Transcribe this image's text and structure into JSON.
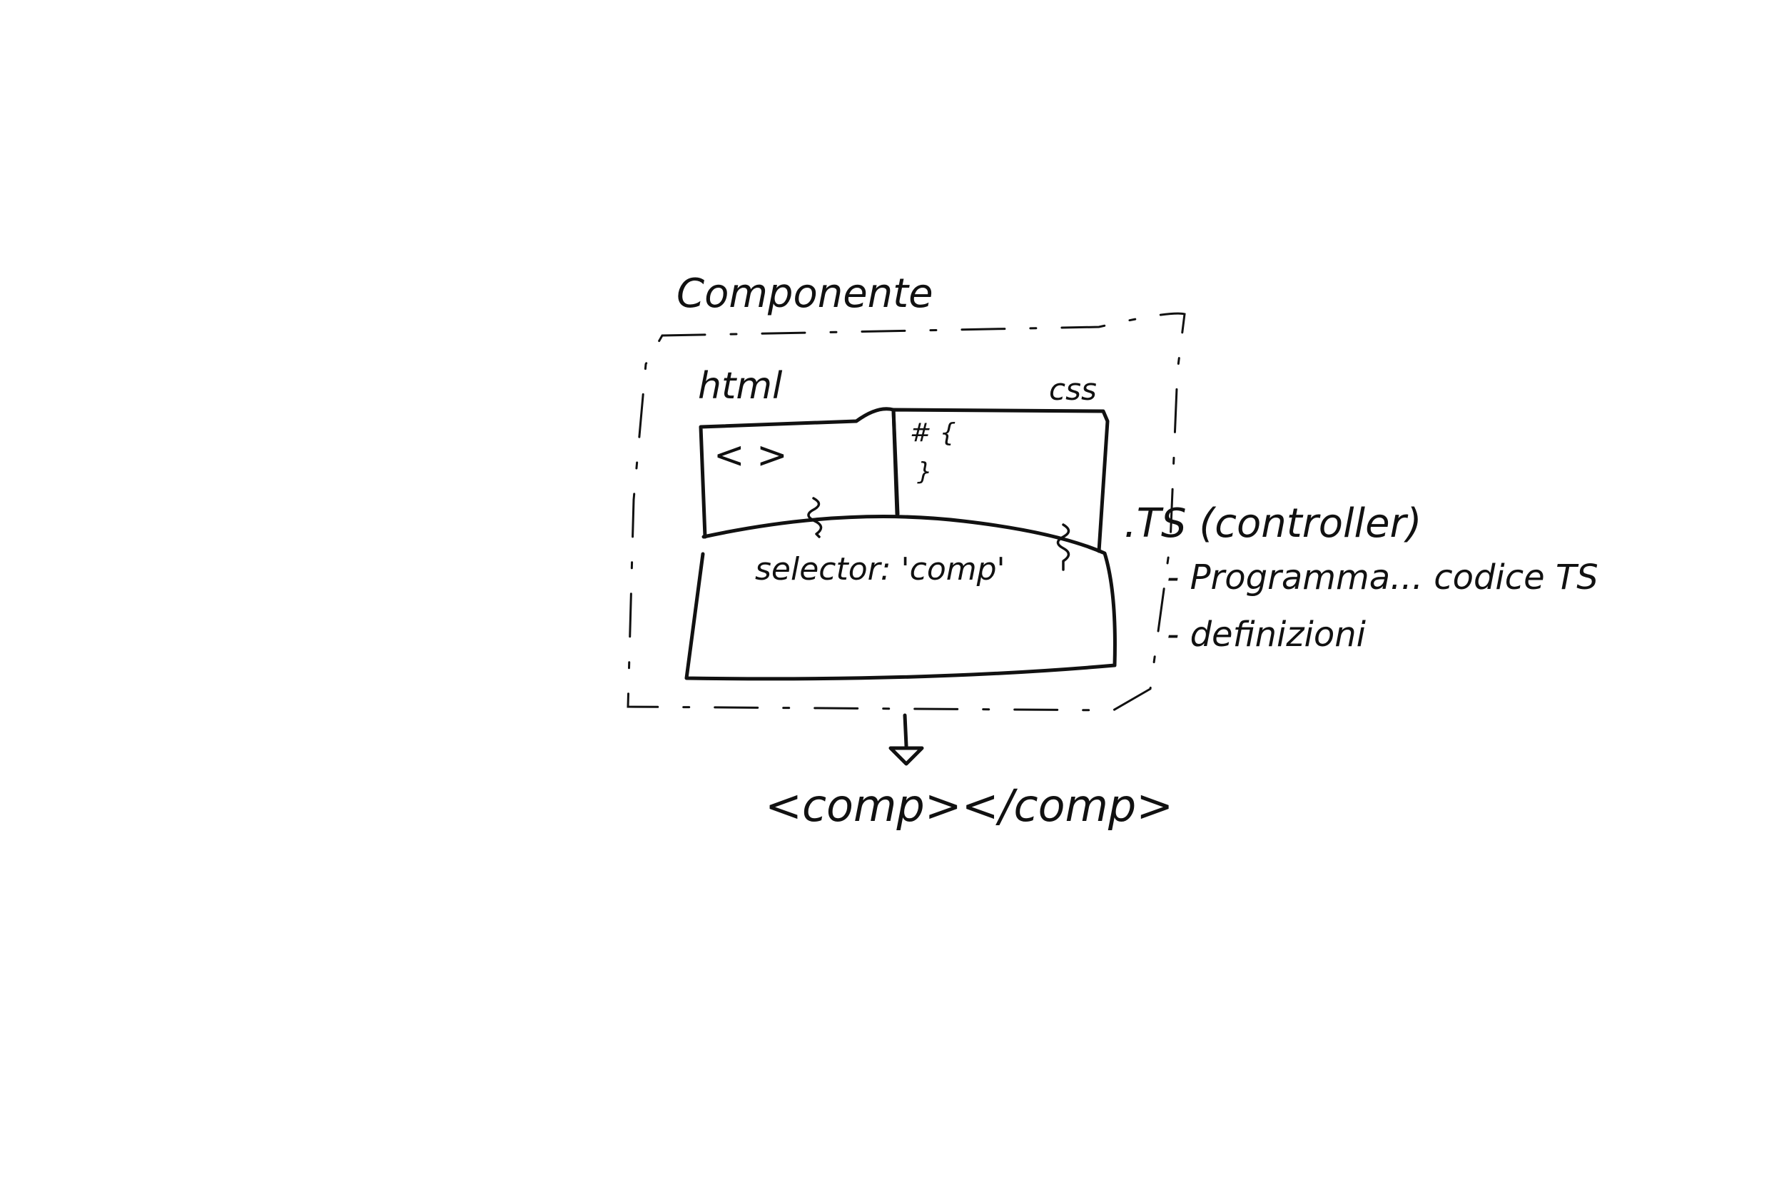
{
  "diagram": {
    "title": "Componente",
    "labels": {
      "html": "html",
      "css": "css",
      "ts": ".TS (controller)",
      "html_content": "< >",
      "css_content_1": "# {",
      "css_content_2": "}",
      "selector": "selector: 'comp'",
      "output": "<comp></comp>"
    },
    "notes": [
      "- Programma... codice TS",
      "- definizioni"
    ],
    "ink_color": "#111111"
  }
}
